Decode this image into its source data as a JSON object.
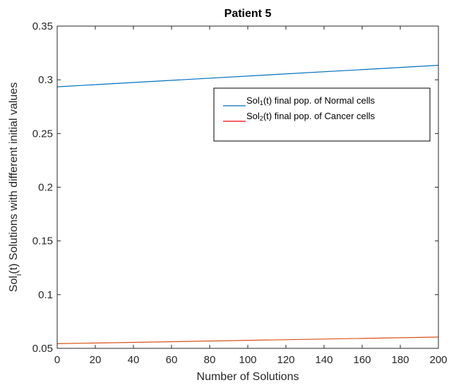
{
  "chart_data": {
    "type": "line",
    "title": "Patient 5",
    "xlabel": "Number of Solutions",
    "ylabel": {
      "prefix": "Sol",
      "subscript": "i",
      "suffix": "(t) Solutions with different initial values"
    },
    "xlim": [
      0,
      200
    ],
    "ylim": [
      0.05,
      0.35
    ],
    "x_ticks": [
      {
        "value": 0,
        "label": "0"
      },
      {
        "value": 20,
        "label": "20"
      },
      {
        "value": 40,
        "label": "40"
      },
      {
        "value": 60,
        "label": "60"
      },
      {
        "value": 80,
        "label": "80"
      },
      {
        "value": 100,
        "label": "100"
      },
      {
        "value": 120,
        "label": "120"
      },
      {
        "value": 140,
        "label": "140"
      },
      {
        "value": 160,
        "label": "160"
      },
      {
        "value": 180,
        "label": "180"
      },
      {
        "value": 200,
        "label": "200"
      }
    ],
    "y_ticks": [
      {
        "value": 0.05,
        "label": "0.05"
      },
      {
        "value": 0.1,
        "label": "0.1"
      },
      {
        "value": 0.15,
        "label": "0.15"
      },
      {
        "value": 0.2,
        "label": "0.2"
      },
      {
        "value": 0.25,
        "label": "0.25"
      },
      {
        "value": 0.3,
        "label": "0.3"
      },
      {
        "value": 0.35,
        "label": "0.35"
      }
    ],
    "grid": false,
    "legend_position": "upper-right",
    "series": [
      {
        "key": "normal",
        "color": "#0072BD",
        "legend_prefix": "Sol",
        "legend_subscript": "1",
        "legend_suffix": "(t) final pop. of Normal cells",
        "x": [
          0,
          200
        ],
        "y": [
          0.2935,
          0.3135
        ]
      },
      {
        "key": "cancer",
        "color": "#D95319",
        "legend_color": "#FF0000",
        "legend_prefix": "Sol",
        "legend_subscript": "2",
        "legend_suffix": "(t) final pop. of Cancer cells",
        "x": [
          0,
          200
        ],
        "y": [
          0.0543,
          0.0605
        ]
      }
    ]
  }
}
